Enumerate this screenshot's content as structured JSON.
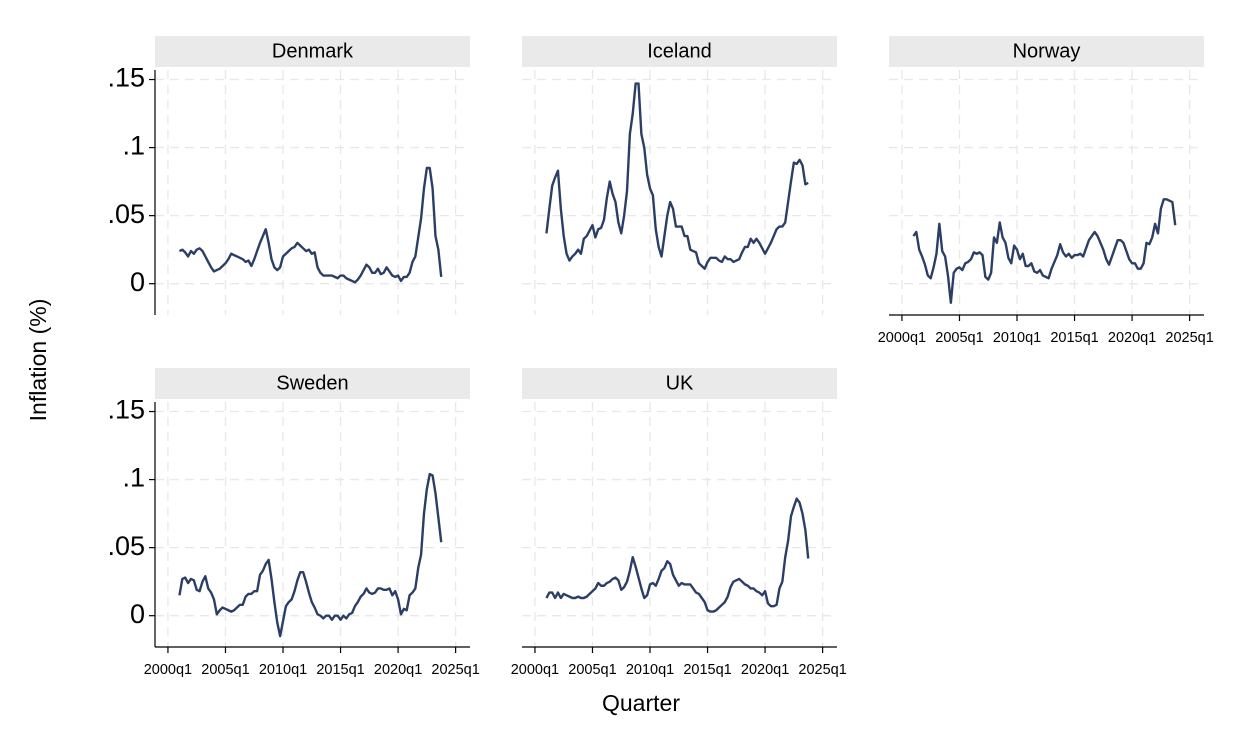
{
  "axis_titles": {
    "y": "Inflation (%)",
    "x": "Quarter"
  },
  "chart_data": [
    {
      "type": "line",
      "title": "Denmark",
      "color": "#2b3f66",
      "y_axis": true,
      "x_axis": false,
      "grid": true,
      "x": [
        164,
        165,
        166,
        167,
        168,
        169,
        170,
        171,
        172,
        173,
        174,
        175,
        176,
        177,
        178,
        179,
        180,
        181,
        182,
        183,
        184,
        185,
        186,
        187,
        188,
        189,
        190,
        191,
        192,
        193,
        194,
        195,
        196,
        197,
        198,
        199,
        200,
        201,
        202,
        203,
        204,
        205,
        206,
        207,
        208,
        209,
        210,
        211,
        212,
        213,
        214,
        215,
        216,
        217,
        218,
        219,
        220,
        221,
        222,
        223,
        224,
        225,
        226,
        227,
        228,
        229,
        230,
        231,
        232,
        233,
        234,
        235,
        236,
        237,
        238,
        239,
        240,
        241,
        242,
        243,
        244,
        245,
        246,
        247,
        248,
        249,
        250,
        251,
        252,
        253,
        254,
        255
      ],
      "values": [
        0.024,
        0.025,
        0.023,
        0.02,
        0.024,
        0.022,
        0.025,
        0.026,
        0.024,
        0.02,
        0.016,
        0.012,
        0.009,
        0.01,
        0.011,
        0.013,
        0.015,
        0.018,
        0.022,
        0.021,
        0.02,
        0.019,
        0.018,
        0.016,
        0.017,
        0.013,
        0.018,
        0.024,
        0.03,
        0.035,
        0.04,
        0.03,
        0.018,
        0.012,
        0.01,
        0.012,
        0.02,
        0.022,
        0.024,
        0.026,
        0.027,
        0.03,
        0.028,
        0.026,
        0.024,
        0.025,
        0.022,
        0.023,
        0.012,
        0.008,
        0.006,
        0.006,
        0.006,
        0.006,
        0.005,
        0.004,
        0.006,
        0.006,
        0.004,
        0.003,
        0.002,
        0.001,
        0.003,
        0.006,
        0.01,
        0.014,
        0.012,
        0.008,
        0.008,
        0.011,
        0.007,
        0.008,
        0.012,
        0.009,
        0.006,
        0.005,
        0.006,
        0.002,
        0.005,
        0.005,
        0.008,
        0.016,
        0.02,
        0.034,
        0.048,
        0.07,
        0.085,
        0.085,
        0.07,
        0.035,
        0.025,
        0.005
      ],
      "xlim": [
        155.5,
        265
      ],
      "ylim": [
        -0.023,
        0.157
      ],
      "xticks": [
        {
          "value": 160,
          "label": "2000q1"
        },
        {
          "value": 180,
          "label": "2005q1"
        },
        {
          "value": 200,
          "label": "2010q1"
        },
        {
          "value": 220,
          "label": "2015q1"
        },
        {
          "value": 240,
          "label": "2020q1"
        },
        {
          "value": 260,
          "label": "2025q1"
        }
      ],
      "yticks": [
        0,
        {
          "value": 0.05,
          "label": ".05"
        },
        {
          "value": 0.1,
          "label": ".1"
        },
        {
          "value": 0.15,
          "label": ".15"
        }
      ]
    },
    {
      "type": "line",
      "title": "Iceland",
      "color": "#2b3f66",
      "y_axis": false,
      "x_axis": false,
      "grid": true,
      "x": [
        164,
        165,
        166,
        167,
        168,
        169,
        170,
        171,
        172,
        173,
        174,
        175,
        176,
        177,
        178,
        179,
        180,
        181,
        182,
        183,
        184,
        185,
        186,
        187,
        188,
        189,
        190,
        191,
        192,
        193,
        194,
        195,
        196,
        197,
        198,
        199,
        200,
        201,
        202,
        203,
        204,
        205,
        206,
        207,
        208,
        209,
        210,
        211,
        212,
        213,
        214,
        215,
        216,
        217,
        218,
        219,
        220,
        221,
        222,
        223,
        224,
        225,
        226,
        227,
        228,
        229,
        230,
        231,
        232,
        233,
        234,
        235,
        236,
        237,
        238,
        239,
        240,
        241,
        242,
        243,
        244,
        245,
        246,
        247,
        248,
        249,
        250,
        251,
        252,
        253,
        254,
        255
      ],
      "values": [
        0.037,
        0.055,
        0.072,
        0.078,
        0.083,
        0.055,
        0.035,
        0.022,
        0.017,
        0.02,
        0.022,
        0.025,
        0.022,
        0.033,
        0.035,
        0.039,
        0.043,
        0.034,
        0.04,
        0.041,
        0.047,
        0.063,
        0.075,
        0.066,
        0.06,
        0.045,
        0.037,
        0.05,
        0.068,
        0.11,
        0.125,
        0.147,
        0.147,
        0.11,
        0.1,
        0.08,
        0.07,
        0.065,
        0.04,
        0.027,
        0.02,
        0.035,
        0.05,
        0.06,
        0.055,
        0.042,
        0.042,
        0.042,
        0.035,
        0.035,
        0.025,
        0.024,
        0.023,
        0.015,
        0.013,
        0.011,
        0.016,
        0.019,
        0.019,
        0.019,
        0.017,
        0.016,
        0.02,
        0.018,
        0.018,
        0.016,
        0.017,
        0.018,
        0.023,
        0.027,
        0.027,
        0.033,
        0.03,
        0.033,
        0.03,
        0.026,
        0.022,
        0.026,
        0.03,
        0.035,
        0.04,
        0.042,
        0.042,
        0.045,
        0.06,
        0.075,
        0.089,
        0.088,
        0.091,
        0.087,
        0.073,
        0.074
      ],
      "xlim": [
        155.5,
        265
      ],
      "ylim": [
        -0.023,
        0.157
      ],
      "xticks": [
        {
          "value": 160,
          "label": "2000q1"
        },
        {
          "value": 180,
          "label": "2005q1"
        },
        {
          "value": 200,
          "label": "2010q1"
        },
        {
          "value": 220,
          "label": "2015q1"
        },
        {
          "value": 240,
          "label": "2020q1"
        },
        {
          "value": 260,
          "label": "2025q1"
        }
      ],
      "yticks": [
        0,
        {
          "value": 0.05,
          "label": ".05"
        },
        {
          "value": 0.1,
          "label": ".1"
        },
        {
          "value": 0.15,
          "label": ".15"
        }
      ]
    },
    {
      "type": "line",
      "title": "Norway",
      "color": "#2b3f66",
      "y_axis": false,
      "x_axis": true,
      "grid": true,
      "x": [
        164,
        165,
        166,
        167,
        168,
        169,
        170,
        171,
        172,
        173,
        174,
        175,
        176,
        177,
        178,
        179,
        180,
        181,
        182,
        183,
        184,
        185,
        186,
        187,
        188,
        189,
        190,
        191,
        192,
        193,
        194,
        195,
        196,
        197,
        198,
        199,
        200,
        201,
        202,
        203,
        204,
        205,
        206,
        207,
        208,
        209,
        210,
        211,
        212,
        213,
        214,
        215,
        216,
        217,
        218,
        219,
        220,
        221,
        222,
        223,
        224,
        225,
        226,
        227,
        228,
        229,
        230,
        231,
        232,
        233,
        234,
        235,
        236,
        237,
        238,
        239,
        240,
        241,
        242,
        243,
        244,
        245,
        246,
        247,
        248,
        249,
        250,
        251,
        252,
        253,
        254,
        255
      ],
      "values": [
        0.035,
        0.038,
        0.025,
        0.02,
        0.014,
        0.006,
        0.004,
        0.012,
        0.022,
        0.044,
        0.024,
        0.02,
        0.006,
        -0.014,
        0.008,
        0.011,
        0.012,
        0.01,
        0.015,
        0.016,
        0.018,
        0.023,
        0.022,
        0.023,
        0.021,
        0.005,
        0.003,
        0.008,
        0.034,
        0.03,
        0.045,
        0.034,
        0.03,
        0.019,
        0.015,
        0.028,
        0.025,
        0.018,
        0.022,
        0.013,
        0.013,
        0.015,
        0.009,
        0.008,
        0.01,
        0.006,
        0.005,
        0.004,
        0.011,
        0.016,
        0.021,
        0.029,
        0.023,
        0.02,
        0.022,
        0.019,
        0.021,
        0.021,
        0.022,
        0.02,
        0.026,
        0.032,
        0.035,
        0.038,
        0.035,
        0.03,
        0.025,
        0.018,
        0.014,
        0.02,
        0.026,
        0.032,
        0.032,
        0.03,
        0.024,
        0.018,
        0.015,
        0.015,
        0.011,
        0.011,
        0.015,
        0.03,
        0.029,
        0.034,
        0.044,
        0.037,
        0.055,
        0.062,
        0.062,
        0.061,
        0.06,
        0.043
      ],
      "xlim": [
        155.5,
        265
      ],
      "ylim": [
        -0.023,
        0.157
      ],
      "xticks": [
        {
          "value": 160,
          "label": "2000q1"
        },
        {
          "value": 180,
          "label": "2005q1"
        },
        {
          "value": 200,
          "label": "2010q1"
        },
        {
          "value": 220,
          "label": "2015q1"
        },
        {
          "value": 240,
          "label": "2020q1"
        },
        {
          "value": 260,
          "label": "2025q1"
        }
      ],
      "yticks": [
        0,
        0.05,
        0.1,
        0.15
      ]
    },
    {
      "type": "line",
      "title": "Sweden",
      "color": "#2b3f66",
      "y_axis": true,
      "x_axis": true,
      "grid": true,
      "x": [
        164,
        165,
        166,
        167,
        168,
        169,
        170,
        171,
        172,
        173,
        174,
        175,
        176,
        177,
        178,
        179,
        180,
        181,
        182,
        183,
        184,
        185,
        186,
        187,
        188,
        189,
        190,
        191,
        192,
        193,
        194,
        195,
        196,
        197,
        198,
        199,
        200,
        201,
        202,
        203,
        204,
        205,
        206,
        207,
        208,
        209,
        210,
        211,
        212,
        213,
        214,
        215,
        216,
        217,
        218,
        219,
        220,
        221,
        222,
        223,
        224,
        225,
        226,
        227,
        228,
        229,
        230,
        231,
        232,
        233,
        234,
        235,
        236,
        237,
        238,
        239,
        240,
        241,
        242,
        243,
        244,
        245,
        246,
        247,
        248,
        249,
        250,
        251,
        252,
        253,
        254,
        255
      ],
      "values": [
        0.015,
        0.027,
        0.028,
        0.024,
        0.027,
        0.026,
        0.019,
        0.018,
        0.025,
        0.029,
        0.02,
        0.017,
        0.012,
        0.001,
        0.004,
        0.006,
        0.005,
        0.004,
        0.003,
        0.004,
        0.006,
        0.008,
        0.008,
        0.014,
        0.016,
        0.016,
        0.018,
        0.018,
        0.03,
        0.033,
        0.038,
        0.041,
        0.027,
        0.01,
        -0.005,
        -0.015,
        -0.004,
        0.007,
        0.01,
        0.012,
        0.018,
        0.026,
        0.032,
        0.032,
        0.025,
        0.017,
        0.01,
        0.006,
        0.001,
        0.0,
        -0.002,
        0.0,
        0.0,
        -0.003,
        0.0,
        0.0,
        -0.003,
        0.0,
        -0.002,
        0.001,
        0.002,
        0.007,
        0.01,
        0.014,
        0.016,
        0.02,
        0.017,
        0.016,
        0.017,
        0.02,
        0.02,
        0.019,
        0.019,
        0.02,
        0.015,
        0.018,
        0.012,
        0.001,
        0.005,
        0.004,
        0.015,
        0.017,
        0.02,
        0.035,
        0.045,
        0.075,
        0.093,
        0.104,
        0.103,
        0.09,
        0.072,
        0.054
      ],
      "xlim": [
        155.5,
        265
      ],
      "ylim": [
        -0.023,
        0.157
      ],
      "xticks": [
        {
          "value": 160,
          "label": "2000q1"
        },
        {
          "value": 180,
          "label": "2005q1"
        },
        {
          "value": 200,
          "label": "2010q1"
        },
        {
          "value": 220,
          "label": "2015q1"
        },
        {
          "value": 240,
          "label": "2020q1"
        },
        {
          "value": 260,
          "label": "2025q1"
        }
      ],
      "yticks": [
        0,
        {
          "value": 0.05,
          "label": ".05"
        },
        {
          "value": 0.1,
          "label": ".1"
        },
        {
          "value": 0.15,
          "label": ".15"
        }
      ]
    },
    {
      "type": "line",
      "title": "UK",
      "color": "#2b3f66",
      "y_axis": false,
      "x_axis": true,
      "grid": true,
      "x": [
        164,
        165,
        166,
        167,
        168,
        169,
        170,
        171,
        172,
        173,
        174,
        175,
        176,
        177,
        178,
        179,
        180,
        181,
        182,
        183,
        184,
        185,
        186,
        187,
        188,
        189,
        190,
        191,
        192,
        193,
        194,
        195,
        196,
        197,
        198,
        199,
        200,
        201,
        202,
        203,
        204,
        205,
        206,
        207,
        208,
        209,
        210,
        211,
        212,
        213,
        214,
        215,
        216,
        217,
        218,
        219,
        220,
        221,
        222,
        223,
        224,
        225,
        226,
        227,
        228,
        229,
        230,
        231,
        232,
        233,
        234,
        235,
        236,
        237,
        238,
        239,
        240,
        241,
        242,
        243,
        244,
        245,
        246,
        247,
        248,
        249,
        250,
        251,
        252,
        253,
        254,
        255
      ],
      "values": [
        0.013,
        0.017,
        0.017,
        0.013,
        0.017,
        0.013,
        0.016,
        0.015,
        0.014,
        0.013,
        0.013,
        0.014,
        0.013,
        0.013,
        0.014,
        0.016,
        0.018,
        0.02,
        0.024,
        0.022,
        0.022,
        0.024,
        0.025,
        0.027,
        0.028,
        0.026,
        0.019,
        0.021,
        0.025,
        0.033,
        0.043,
        0.036,
        0.028,
        0.02,
        0.013,
        0.015,
        0.023,
        0.024,
        0.022,
        0.027,
        0.033,
        0.035,
        0.04,
        0.038,
        0.03,
        0.026,
        0.022,
        0.024,
        0.023,
        0.023,
        0.023,
        0.02,
        0.017,
        0.016,
        0.013,
        0.01,
        0.004,
        0.003,
        0.003,
        0.004,
        0.006,
        0.008,
        0.01,
        0.014,
        0.021,
        0.025,
        0.026,
        0.027,
        0.025,
        0.023,
        0.022,
        0.02,
        0.02,
        0.018,
        0.017,
        0.015,
        0.018,
        0.009,
        0.007,
        0.007,
        0.008,
        0.02,
        0.025,
        0.043,
        0.055,
        0.073,
        0.08,
        0.086,
        0.083,
        0.075,
        0.063,
        0.042
      ],
      "xlim": [
        155.5,
        265
      ],
      "ylim": [
        -0.023,
        0.157
      ],
      "xticks": [
        {
          "value": 160,
          "label": "2000q1"
        },
        {
          "value": 180,
          "label": "2005q1"
        },
        {
          "value": 200,
          "label": "2010q1"
        },
        {
          "value": 220,
          "label": "2015q1"
        },
        {
          "value": 240,
          "label": "2020q1"
        },
        {
          "value": 260,
          "label": "2025q1"
        }
      ],
      "yticks": [
        0,
        0.05,
        0.1,
        0.15
      ]
    }
  ]
}
